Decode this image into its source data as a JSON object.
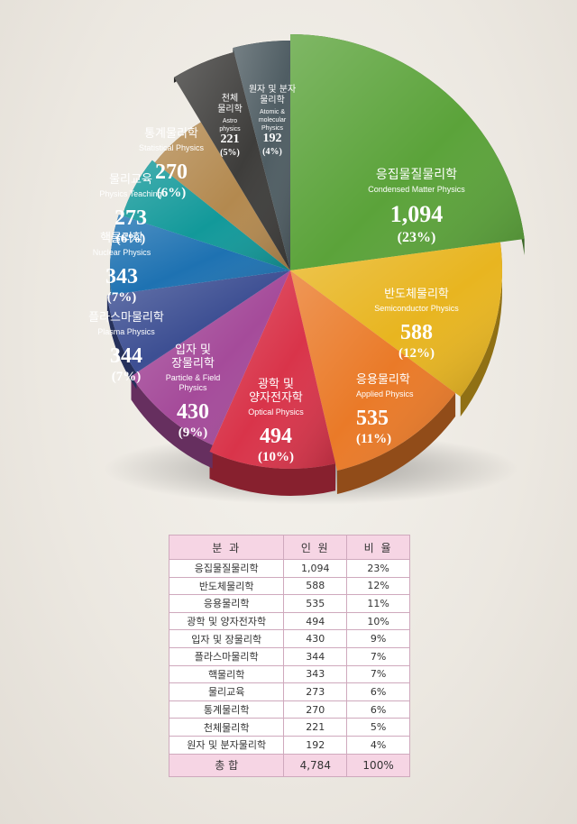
{
  "chart_data": {
    "type": "pie",
    "total": 4784,
    "slices": [
      {
        "ko": "응집물질물리학",
        "en": [
          "Condensed Matter Physics"
        ],
        "value": 1094,
        "value_label": "1,094",
        "pct_label": "(23%)",
        "color": "#5ba33a"
      },
      {
        "ko": "반도체물리학",
        "en": [
          "Semiconductor Physics"
        ],
        "value": 588,
        "value_label": "588",
        "pct_label": "(12%)",
        "color": "#e8b520"
      },
      {
        "ko": "응용물리학",
        "en": [
          "Applied Physics"
        ],
        "value": 535,
        "value_label": "535",
        "pct_label": "(11%)",
        "color": "#ea7a28"
      },
      {
        "ko": "광학 및 양자전자학",
        "en": [
          "Optical Physics"
        ],
        "value": 494,
        "value_label": "494",
        "pct_label": "(10%)",
        "color": "#d9344a"
      },
      {
        "ko": "입자 및 장물리학",
        "en": [
          "Particle & Field",
          "Physics"
        ],
        "value": 430,
        "value_label": "430",
        "pct_label": "(9%)",
        "color": "#a54b9a"
      },
      {
        "ko": "플라스마물리학",
        "en": [
          "Plasma Physics"
        ],
        "value": 344,
        "value_label": "344",
        "pct_label": "(7%)",
        "color": "#3d4f93"
      },
      {
        "ko": "핵물리학",
        "en": [
          "Nuclear Physics"
        ],
        "value": 343,
        "value_label": "343",
        "pct_label": "(7%)",
        "color": "#1e72b2"
      },
      {
        "ko": "물리교육",
        "en": [
          "Physics Teaching"
        ],
        "value": 273,
        "value_label": "273",
        "pct_label": "(6%)",
        "color": "#12999a"
      },
      {
        "ko": "통계물리학",
        "en": [
          "Statistical Physics"
        ],
        "value": 270,
        "value_label": "270",
        "pct_label": "(6%)",
        "color": "#b3894f"
      },
      {
        "ko": "천체물리학",
        "en": [
          "Astro",
          "physics"
        ],
        "value": 221,
        "value_label": "221",
        "pct_label": "(5%)",
        "color": "#3e3d3b"
      },
      {
        "ko": "원자 및 분자물리학",
        "en": [
          "Atomic &",
          "molecular",
          "Physics"
        ],
        "value": 192,
        "value_label": "192",
        "pct_label": "(4%)",
        "color": "#4f5d63"
      }
    ]
  },
  "table": {
    "headers": [
      "분 과",
      "인 원",
      "비 율"
    ],
    "rows": [
      [
        "응집물질물리학",
        "1,094",
        "23%"
      ],
      [
        "반도체물리학",
        "588",
        "12%"
      ],
      [
        "응용물리학",
        "535",
        "11%"
      ],
      [
        "광학 및 양자전자학",
        "494",
        "10%"
      ],
      [
        "입자 및 장물리학",
        "430",
        "9%"
      ],
      [
        "플라스마물리학",
        "344",
        "7%"
      ],
      [
        "핵물리학",
        "343",
        "7%"
      ],
      [
        "물리교육",
        "273",
        "6%"
      ],
      [
        "통계물리학",
        "270",
        "6%"
      ],
      [
        "천체물리학",
        "221",
        "5%"
      ],
      [
        "원자 및 분자물리학",
        "192",
        "4%"
      ]
    ],
    "footer": [
      "총 합",
      "4,784",
      "100%"
    ]
  },
  "pie_labels": {
    "ko_display": [
      "응집물질물리학",
      "반도체물리학",
      "응용물리학",
      "광학 및|양자전자학",
      "입자 및|장물리학",
      "플라스마물리학",
      "핵물리학",
      "물리교육",
      "통계물리학",
      "천체|물리학",
      "원자 및 분자|물리학"
    ]
  }
}
